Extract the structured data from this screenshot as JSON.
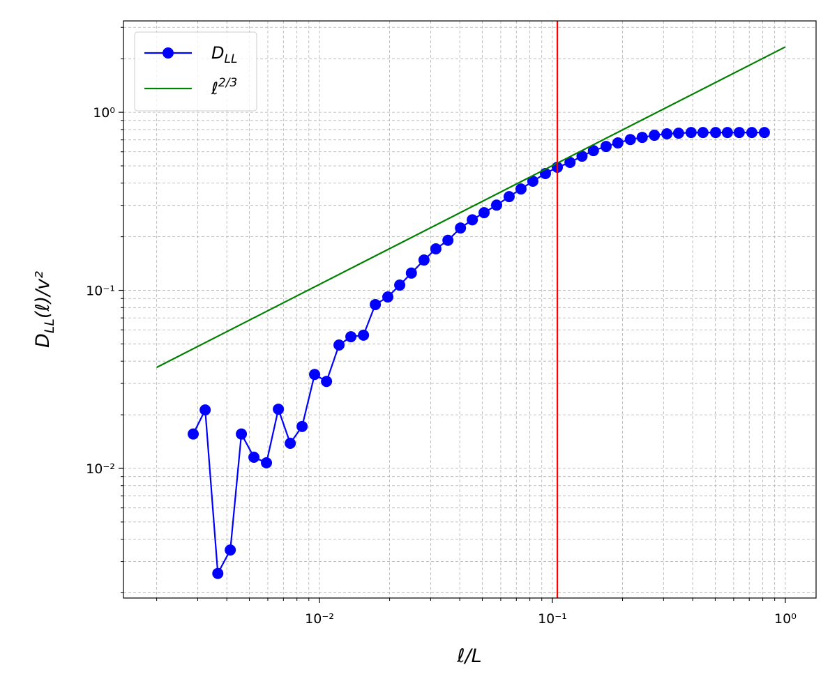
{
  "chart_data": {
    "type": "line",
    "xlabel": "ℓ/L",
    "ylabel": "D",
    "ylabel_subscript": "LL",
    "ylabel_rest": "(ℓ)/v²",
    "xscale": "log",
    "yscale": "log",
    "grid": true,
    "legend": "upper left",
    "xlim": [
      0.00144,
      1.355
    ],
    "ylim": [
      0.00187,
      3.26
    ],
    "xticks": [
      {
        "value": 0.01,
        "label": "10⁻²"
      },
      {
        "value": 0.1,
        "label": "10⁻¹"
      },
      {
        "value": 1,
        "label": "10⁰"
      }
    ],
    "yticks": [
      {
        "value": 0.01,
        "label": "10⁻²"
      },
      {
        "value": 0.1,
        "label": "10⁻¹"
      },
      {
        "value": 1,
        "label": "10⁰"
      }
    ],
    "xminorticks": [
      0.002,
      0.003,
      0.004,
      0.005,
      0.006,
      0.007,
      0.008,
      0.009,
      0.02,
      0.03,
      0.04,
      0.05,
      0.06,
      0.07,
      0.08,
      0.09,
      0.2,
      0.3,
      0.4,
      0.5,
      0.6,
      0.7,
      0.8,
      0.9
    ],
    "yminorticks": [
      0.002,
      0.003,
      0.004,
      0.005,
      0.006,
      0.007,
      0.008,
      0.009,
      0.02,
      0.03,
      0.04,
      0.05,
      0.06,
      0.07,
      0.08,
      0.09,
      0.2,
      0.3,
      0.4,
      0.5,
      0.6,
      0.7,
      0.8,
      0.9,
      2,
      3
    ],
    "series": [
      {
        "name": "D",
        "name_subscript": "LL",
        "color": "#0000ff",
        "marker": true,
        "x": [
          0.00287,
          0.00323,
          0.00366,
          0.00414,
          0.00462,
          0.00523,
          0.00592,
          0.00666,
          0.00749,
          0.00842,
          0.00953,
          0.01072,
          0.01213,
          0.01364,
          0.01545,
          0.01737,
          0.01965,
          0.0221,
          0.0248,
          0.0281,
          0.0316,
          0.0356,
          0.0403,
          0.0453,
          0.0509,
          0.0576,
          0.0652,
          0.0733,
          0.0824,
          0.0933,
          0.105,
          0.119,
          0.134,
          0.15,
          0.17,
          0.191,
          0.216,
          0.243,
          0.274,
          0.31,
          0.348,
          0.394,
          0.443,
          0.502,
          0.564,
          0.634,
          0.718,
          0.813
        ],
        "values": [
          0.0156,
          0.0213,
          0.00257,
          0.00348,
          0.0156,
          0.01155,
          0.01075,
          0.0215,
          0.01383,
          0.0172,
          0.0337,
          0.0308,
          0.0493,
          0.0549,
          0.056,
          0.0832,
          0.0918,
          0.107,
          0.125,
          0.148,
          0.171,
          0.191,
          0.224,
          0.249,
          0.273,
          0.301,
          0.336,
          0.371,
          0.41,
          0.453,
          0.491,
          0.523,
          0.567,
          0.609,
          0.643,
          0.673,
          0.703,
          0.723,
          0.743,
          0.757,
          0.763,
          0.77,
          0.77,
          0.77,
          0.77,
          0.77,
          0.77,
          0.77
        ]
      },
      {
        "name": "ℓ",
        "name_superscript": "2/3",
        "color": "#008000",
        "marker": false,
        "x": [
          0.002,
          1
        ],
        "values": [
          0.0369,
          2.33
        ]
      }
    ],
    "vline": {
      "x": 0.105,
      "color": "#ff0000"
    }
  }
}
